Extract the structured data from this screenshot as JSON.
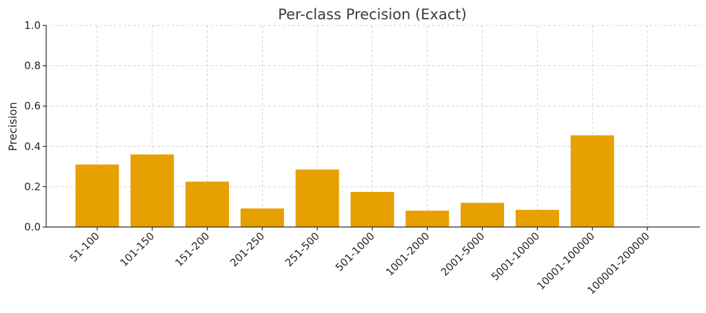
{
  "chart_data": {
    "type": "bar",
    "title": "Per-class Precision (Exact)",
    "xlabel": "",
    "ylabel": "Precision",
    "ylim": [
      0,
      1.0
    ],
    "yticks": [
      0.0,
      0.2,
      0.4,
      0.6,
      0.8,
      1.0
    ],
    "grid": true,
    "bar_color": "#e6a000",
    "categories": [
      "51-100",
      "101-150",
      "151-200",
      "201-250",
      "251-500",
      "501-1000",
      "1001-2000",
      "2001-5000",
      "5001-10000",
      "10001-100000",
      "100001-200000"
    ],
    "values": [
      0.31,
      0.36,
      0.225,
      0.092,
      0.285,
      0.174,
      0.081,
      0.12,
      0.085,
      0.455,
      0.0
    ]
  }
}
